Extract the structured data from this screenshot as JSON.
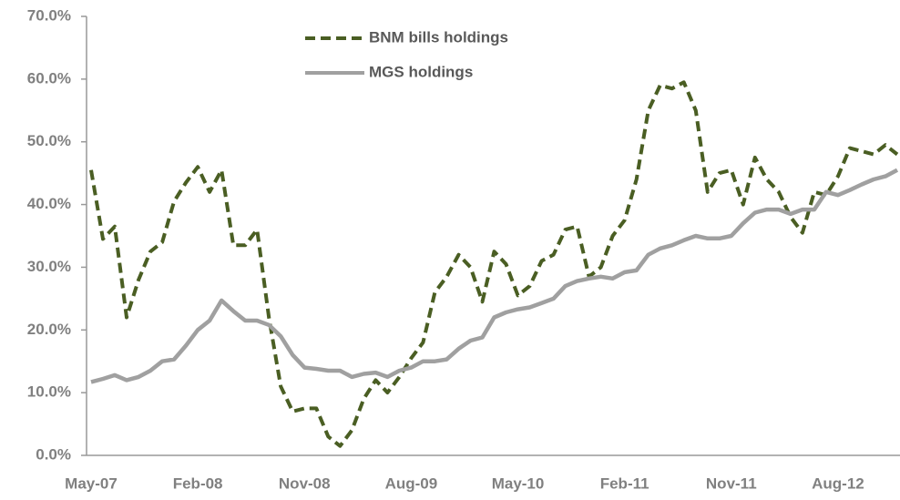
{
  "chart_data": {
    "type": "line",
    "categories": [
      "May-07",
      null,
      null,
      null,
      null,
      null,
      null,
      null,
      null,
      "Feb-08",
      null,
      null,
      null,
      null,
      null,
      null,
      null,
      null,
      "Nov-08",
      null,
      null,
      null,
      null,
      null,
      null,
      null,
      null,
      "Aug-09",
      null,
      null,
      null,
      null,
      null,
      null,
      null,
      null,
      "May-10",
      null,
      null,
      null,
      null,
      null,
      null,
      null,
      null,
      "Feb-11",
      null,
      null,
      null,
      null,
      null,
      null,
      null,
      null,
      "Nov-11",
      null,
      null,
      null,
      null,
      null,
      null,
      null,
      null,
      "Aug-12",
      null,
      null,
      null,
      null,
      null
    ],
    "series": [
      {
        "name": "BNM bills holdings",
        "color": "#4a5e23",
        "dashed": true,
        "values": [
          45.5,
          34.5,
          36.5,
          22,
          28,
          32.5,
          34,
          40.5,
          43.5,
          46,
          42,
          45.5,
          33.5,
          33.5,
          36,
          22,
          11,
          7,
          7.5,
          7.5,
          3,
          1.5,
          4,
          9,
          12,
          10,
          12.5,
          15.5,
          18,
          26,
          28.5,
          32,
          30,
          24.5,
          32.5,
          30.5,
          25.5,
          27,
          31,
          32,
          36,
          36.5,
          28.5,
          30,
          35,
          37.5,
          44,
          55,
          59,
          58.5,
          59.5,
          55,
          42,
          45,
          45.5,
          40,
          47.5,
          44,
          42,
          38,
          35.5,
          42,
          41.5,
          44.5,
          49,
          48.5,
          48,
          49.5,
          48
        ]
      },
      {
        "name": "MGS holdings",
        "color": "#a0a0a0",
        "dashed": false,
        "values": [
          11.7,
          12.2,
          12.8,
          12,
          12.5,
          13.5,
          15,
          15.3,
          17.5,
          20,
          21.5,
          24.7,
          23,
          21.5,
          21.5,
          20.8,
          19,
          16,
          14,
          13.8,
          13.5,
          13.5,
          12.5,
          13,
          13.2,
          12.5,
          13.5,
          14,
          15,
          15,
          15.3,
          17,
          18.3,
          18.8,
          22,
          22.8,
          23.3,
          23.6,
          24.3,
          25,
          27,
          27.8,
          28.2,
          28.5,
          28.2,
          29.2,
          29.5,
          32,
          33,
          33.5,
          34.3,
          35,
          34.6,
          34.6,
          35,
          37,
          38.7,
          39.2,
          39.2,
          38.5,
          39.2,
          39.2,
          42,
          41.5,
          42.3,
          43.2,
          44,
          44.5,
          45.5
        ]
      }
    ],
    "ylim": [
      0,
      70
    ],
    "yticks": [
      {
        "value": 0,
        "label": "0.0%"
      },
      {
        "value": 10,
        "label": "10.0%"
      },
      {
        "value": 20,
        "label": "20.0%"
      },
      {
        "value": 30,
        "label": "30.0%"
      },
      {
        "value": 40,
        "label": "40.0%"
      },
      {
        "value": 50,
        "label": "50.0%"
      },
      {
        "value": 60,
        "label": "60.0%"
      },
      {
        "value": 70,
        "label": "70.0%"
      }
    ],
    "grid": false,
    "legend": "top"
  }
}
